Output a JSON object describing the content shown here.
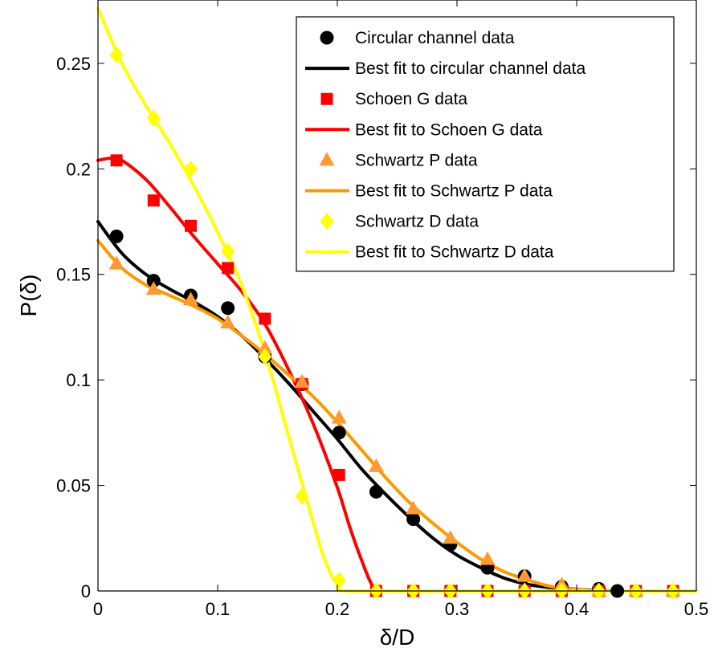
{
  "chart_data": {
    "type": "line",
    "xlabel": "δ/D",
    "ylabel": "P(δ)",
    "xlim": [
      0,
      0.5
    ],
    "ylim": [
      0,
      0.28
    ],
    "xticks": [
      0,
      0.1,
      0.2,
      0.3,
      0.4,
      0.5
    ],
    "xtick_labels": [
      "0",
      "0.1",
      "0.2",
      "0.3",
      "0.4",
      "0.5"
    ],
    "yticks": [
      0,
      0.05,
      0.1,
      0.15,
      0.2,
      0.25
    ],
    "ytick_labels": [
      "0",
      "0.05",
      "0.1",
      "0.15",
      "0.2",
      "0.25"
    ],
    "grid": false,
    "legend_position": "top-right",
    "series": [
      {
        "name": "Circular channel data",
        "kind": "markers",
        "marker": "circle",
        "color": "#000000",
        "x": [
          0.0155,
          0.0465,
          0.0775,
          0.1085,
          0.1395,
          0.1705,
          0.2015,
          0.2325,
          0.2635,
          0.2945,
          0.3255,
          0.3565,
          0.3875,
          0.4185,
          0.434
        ],
        "y": [
          0.168,
          0.147,
          0.14,
          0.134,
          0.111,
          0.098,
          0.075,
          0.047,
          0.034,
          0.022,
          0.011,
          0.007,
          0.002,
          0.001,
          0.0
        ]
      },
      {
        "name": "Best fit to circular channel data",
        "kind": "line",
        "color": "#000000",
        "x": [
          0.0,
          0.02,
          0.04,
          0.06,
          0.08,
          0.1,
          0.12,
          0.14,
          0.16,
          0.18,
          0.2,
          0.22,
          0.24,
          0.26,
          0.28,
          0.3,
          0.32,
          0.34,
          0.36,
          0.38,
          0.4,
          0.42,
          0.44
        ],
        "y": [
          0.175,
          0.16,
          0.15,
          0.143,
          0.137,
          0.13,
          0.121,
          0.11,
          0.098,
          0.085,
          0.072,
          0.058,
          0.046,
          0.035,
          0.025,
          0.017,
          0.011,
          0.006,
          0.003,
          0.0015,
          0.0007,
          0.0002,
          0.0
        ]
      },
      {
        "name": "Schoen G data",
        "kind": "markers",
        "marker": "square",
        "color": "#ff0000",
        "x": [
          0.0155,
          0.0465,
          0.0775,
          0.1085,
          0.1395,
          0.1705,
          0.2015,
          0.2325,
          0.2635,
          0.2945,
          0.3255,
          0.3565,
          0.3875,
          0.4185,
          0.4495,
          0.4805
        ],
        "y": [
          0.204,
          0.185,
          0.173,
          0.153,
          0.129,
          0.098,
          0.055,
          0.0,
          0.0,
          0.0,
          0.0,
          0.0,
          0.0,
          0.0,
          0.0,
          0.0
        ]
      },
      {
        "name": "Best fit to Schoen G data",
        "kind": "line",
        "color": "#ff0000",
        "x": [
          0.0,
          0.01,
          0.02,
          0.04,
          0.06,
          0.08,
          0.1,
          0.12,
          0.14,
          0.16,
          0.18,
          0.2,
          0.21,
          0.22,
          0.23,
          0.24,
          0.3,
          0.4,
          0.5
        ],
        "y": [
          0.204,
          0.205,
          0.204,
          0.195,
          0.182,
          0.168,
          0.155,
          0.142,
          0.126,
          0.104,
          0.079,
          0.049,
          0.031,
          0.015,
          0.002,
          0.0,
          0.0,
          0.0,
          0.0
        ]
      },
      {
        "name": "Schwartz P data",
        "kind": "markers",
        "marker": "triangle",
        "color": "#ff9933",
        "x": [
          0.0155,
          0.0465,
          0.0775,
          0.1085,
          0.1395,
          0.1705,
          0.2015,
          0.2325,
          0.2635,
          0.2945,
          0.3255,
          0.3565,
          0.3875,
          0.4185,
          0.4495,
          0.4805
        ],
        "y": [
          0.155,
          0.143,
          0.138,
          0.127,
          0.115,
          0.099,
          0.082,
          0.059,
          0.039,
          0.025,
          0.015,
          0.007,
          0.003,
          0.0,
          0.0,
          0.0
        ]
      },
      {
        "name": "Best fit to Schwartz P data",
        "kind": "line",
        "color": "#ff9900",
        "x": [
          0.0,
          0.02,
          0.04,
          0.06,
          0.08,
          0.1,
          0.12,
          0.14,
          0.16,
          0.18,
          0.2,
          0.22,
          0.24,
          0.26,
          0.28,
          0.3,
          0.32,
          0.34,
          0.36,
          0.38,
          0.4,
          0.42,
          0.5
        ],
        "y": [
          0.166,
          0.153,
          0.145,
          0.14,
          0.135,
          0.129,
          0.121,
          0.112,
          0.102,
          0.092,
          0.08,
          0.067,
          0.054,
          0.042,
          0.032,
          0.023,
          0.015,
          0.009,
          0.005,
          0.002,
          0.001,
          0.0,
          0.0
        ]
      },
      {
        "name": "Schwartz D data",
        "kind": "markers",
        "marker": "diamond",
        "color": "#ffff00",
        "x": [
          0.0155,
          0.0465,
          0.0775,
          0.1085,
          0.1395,
          0.1705,
          0.2015,
          0.2325,
          0.2635,
          0.2945,
          0.3255,
          0.3565,
          0.3875,
          0.4185,
          0.4495,
          0.4805
        ],
        "y": [
          0.254,
          0.224,
          0.2,
          0.161,
          0.111,
          0.045,
          0.005,
          0.0,
          0.0,
          0.0,
          0.0,
          0.0,
          0.0,
          0.0,
          0.0,
          0.0
        ]
      },
      {
        "name": "Best fit to Schwartz D data",
        "kind": "line",
        "color": "#ffff00",
        "x": [
          0.0,
          0.02,
          0.04,
          0.06,
          0.08,
          0.1,
          0.12,
          0.14,
          0.16,
          0.18,
          0.19,
          0.2,
          0.21,
          0.3,
          0.4,
          0.5
        ],
        "y": [
          0.276,
          0.25,
          0.23,
          0.212,
          0.192,
          0.17,
          0.145,
          0.112,
          0.072,
          0.032,
          0.014,
          0.003,
          0.0,
          0.0,
          0.0,
          0.0
        ]
      }
    ],
    "legend": [
      {
        "label": "Circular channel data",
        "kind": "marker",
        "marker": "circle",
        "color": "#000000"
      },
      {
        "label": "Best fit to circular channel data",
        "kind": "line",
        "color": "#000000"
      },
      {
        "label": "Schoen G data",
        "kind": "marker",
        "marker": "square",
        "color": "#ff0000"
      },
      {
        "label": "Best fit to Schoen G data",
        "kind": "line",
        "color": "#ff0000"
      },
      {
        "label": "Schwartz P data",
        "kind": "marker",
        "marker": "triangle",
        "color": "#ff9933"
      },
      {
        "label": "Best fit to Schwartz P data",
        "kind": "line",
        "color": "#ff9900"
      },
      {
        "label": "Schwartz D data",
        "kind": "marker",
        "marker": "diamond",
        "color": "#ffff00"
      },
      {
        "label": "Best fit to Schwartz D data",
        "kind": "line",
        "color": "#ffff00"
      }
    ]
  }
}
